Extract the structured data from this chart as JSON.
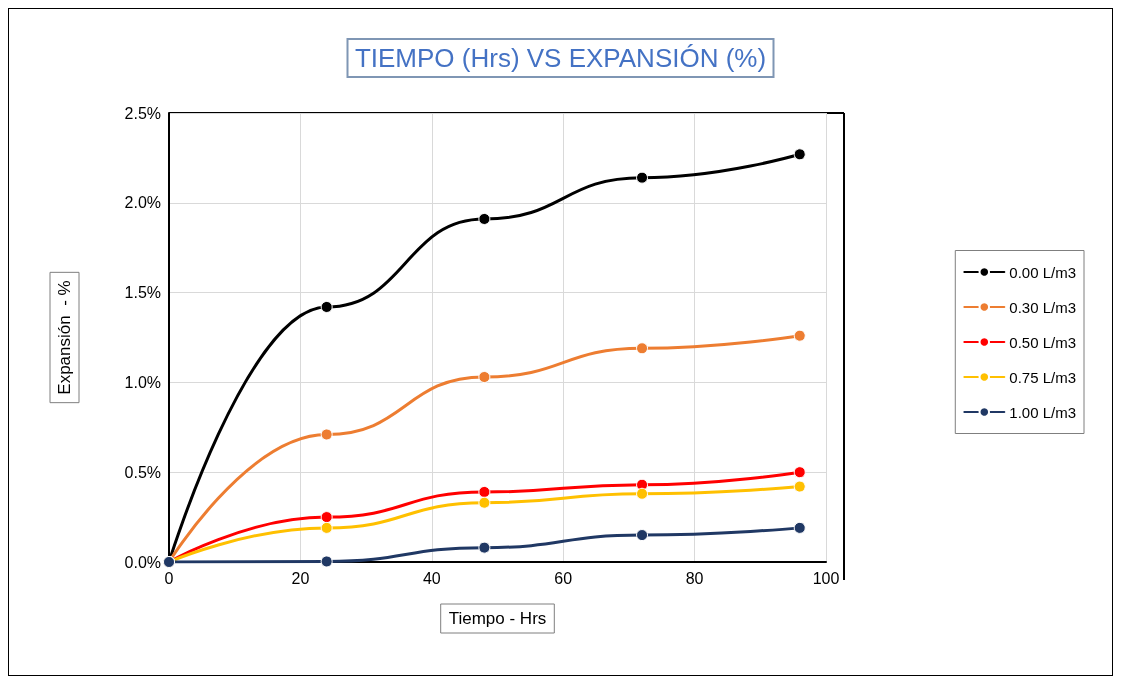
{
  "chart_data": {
    "type": "line",
    "title": "TIEMPO (Hrs) VS EXPANSIÓN (%)",
    "xlabel": "Tiempo - Hrs",
    "ylabel": "Expansión  - %",
    "x": [
      0,
      24,
      48,
      72,
      96
    ],
    "series": [
      {
        "name": "0.00 L/m3",
        "color": "#000000",
        "values": [
          0,
          1.42,
          1.91,
          2.14,
          2.27
        ]
      },
      {
        "name": "0.30 L/m3",
        "color": "#ed7d31",
        "values": [
          0,
          0.71,
          1.03,
          1.19,
          1.26
        ]
      },
      {
        "name": "0.50 L/m3",
        "color": "#ff0000",
        "values": [
          0,
          0.25,
          0.39,
          0.43,
          0.5
        ]
      },
      {
        "name": "0.75 L/m3",
        "color": "#ffc000",
        "values": [
          0,
          0.19,
          0.33,
          0.38,
          0.42
        ]
      },
      {
        "name": "1.00 L/m3",
        "color": "#203864",
        "values": [
          0,
          0.003,
          0.08,
          0.15,
          0.19
        ]
      }
    ],
    "xlim": [
      0,
      100
    ],
    "xticks": [
      0,
      20,
      40,
      60,
      80,
      100
    ],
    "ylim": [
      0,
      2.5
    ],
    "yticks": [
      {
        "value": 0,
        "label": "0.0%"
      },
      {
        "value": 0.5,
        "label": "0.5%"
      },
      {
        "value": 1,
        "label": "1.0%"
      },
      {
        "value": 1.5,
        "label": "1.5%"
      },
      {
        "value": 2,
        "label": "2.0%"
      },
      {
        "value": 2.5,
        "label": "2.5%"
      }
    ],
    "grid": true,
    "legend": "right",
    "marker": "circle",
    "line_style": "solid"
  }
}
